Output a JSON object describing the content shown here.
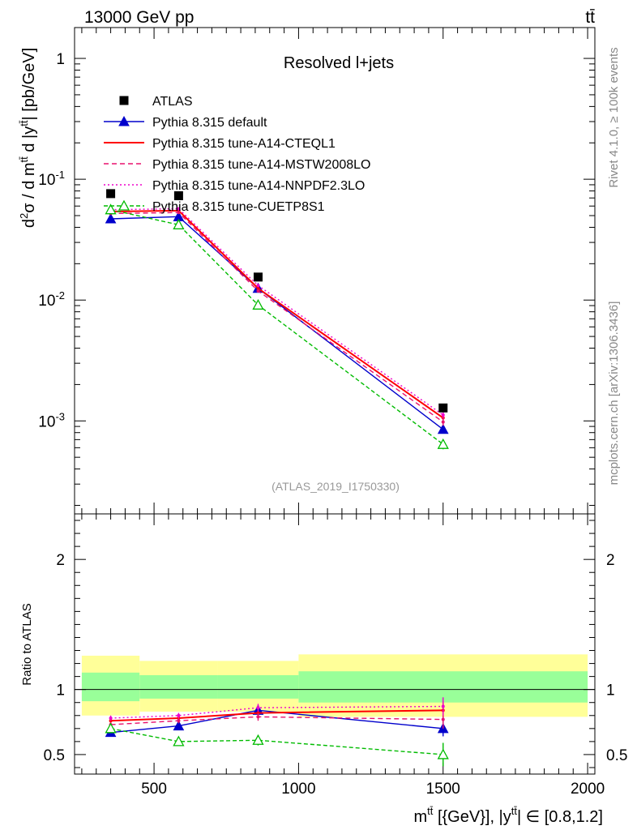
{
  "header": {
    "left": "13000 GeV pp",
    "right": "tt̄"
  },
  "side": {
    "rivet": "Rivet 4.1.0, ≥ 100k events",
    "mcplots": "mcplots.cern.ch [arXiv:1306.3436]"
  },
  "chart_data": {
    "type": "line",
    "title": "Resolved l+jets",
    "watermark": "(ATLAS_2019_I1750330)",
    "xlabel": "m^{tt̄} [{GeV}], |y^{tt̄}| ∈ [0.8,1.2]",
    "ylabel": "d²σ / d m^{tt̄} d |y^{tt̄}| [pb/GeV]",
    "ratio_ylabel": "Ratio to ATLAS",
    "xlim": [
      225,
      2025
    ],
    "ylim": [
      0.00017,
      1.8
    ],
    "ratio_ylim": [
      0.35,
      2.35
    ],
    "x_ticks": [
      500,
      1000,
      1500,
      2000
    ],
    "x_tick_labels": [
      "500",
      "1000",
      "1500",
      "2000"
    ],
    "y_ticks": [
      1,
      0.1,
      0.01,
      0.001
    ],
    "y_tick_labels": [
      "1",
      "10^-1",
      "10^-2",
      "10^-3"
    ],
    "ratio_ticks": [
      0.5,
      1,
      2
    ],
    "ratio_tick_labels": [
      "0.5",
      "1",
      "2"
    ],
    "bins": [
      [
        250,
        450
      ],
      [
        450,
        720
      ],
      [
        720,
        1000
      ],
      [
        1000,
        2000
      ]
    ],
    "x": [
      350,
      585,
      860,
      1500
    ],
    "bands": {
      "inner": [
        [
          0.91,
          1.13
        ],
        [
          0.93,
          1.11
        ],
        [
          0.93,
          1.11
        ],
        [
          0.9,
          1.14
        ]
      ],
      "outer": [
        [
          0.8,
          1.26
        ],
        [
          0.83,
          1.22
        ],
        [
          0.83,
          1.22
        ],
        [
          0.79,
          1.27
        ]
      ]
    },
    "data": {
      "name": "ATLAS",
      "values": [
        0.076,
        0.073,
        0.0155,
        0.00128
      ],
      "color": "#000000"
    },
    "series": [
      {
        "name": "Pythia 8.315 default",
        "color": "#0000cc",
        "dash": "",
        "marker": "triangle",
        "values": [
          0.047,
          0.049,
          0.0125,
          0.00085
        ],
        "ratio": [
          0.67,
          0.72,
          0.84,
          0.7
        ],
        "err": [
          0.02,
          0.02,
          0.04,
          0.06
        ]
      },
      {
        "name": "Pythia 8.315 tune-A14-CTEQL1",
        "color": "#ff0000",
        "dash": "",
        "marker": "none",
        "values": [
          0.054,
          0.055,
          0.0125,
          0.00106
        ],
        "ratio": [
          0.76,
          0.78,
          0.82,
          0.84
        ],
        "err": [
          0.02,
          0.02,
          0.03,
          0.07
        ]
      },
      {
        "name": "Pythia 8.315 tune-A14-MSTW2008LO",
        "color": "#e8106e",
        "dash": "6,4",
        "marker": "none",
        "values": [
          0.052,
          0.053,
          0.0119,
          0.00098
        ],
        "ratio": [
          0.73,
          0.76,
          0.79,
          0.77
        ],
        "err": [
          0.02,
          0.02,
          0.03,
          0.07
        ]
      },
      {
        "name": "Pythia 8.315 tune-A14-NNPDF2.3LO",
        "color": "#ee00cc",
        "dash": "2,3",
        "marker": "none",
        "values": [
          0.056,
          0.057,
          0.0132,
          0.00112
        ],
        "ratio": [
          0.78,
          0.8,
          0.86,
          0.87
        ],
        "err": [
          0.02,
          0.02,
          0.03,
          0.07
        ]
      },
      {
        "name": "Pythia 8.315 tune-CUETP8S1",
        "color": "#00bb00",
        "dash": "5,3",
        "marker": "open-triangle",
        "values": [
          0.056,
          0.042,
          0.0091,
          0.00064
        ],
        "ratio": [
          0.7,
          0.6,
          0.61,
          0.5
        ],
        "err": [
          0.02,
          0.02,
          0.04,
          0.09
        ]
      }
    ]
  }
}
